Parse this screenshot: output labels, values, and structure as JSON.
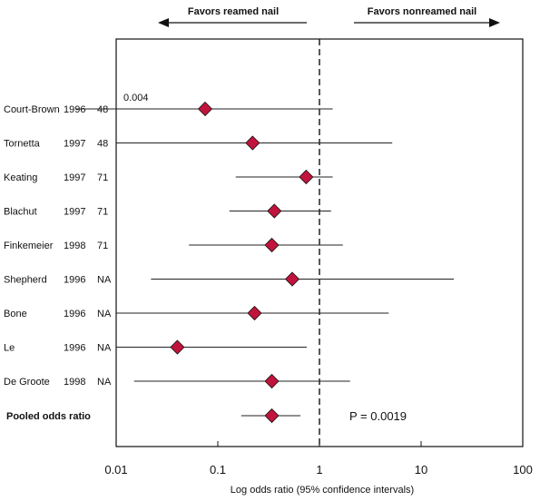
{
  "chart_data": {
    "type": "forest",
    "xscale": "log",
    "xlim": [
      0.01,
      100
    ],
    "xticks": [
      "0.01",
      "0.1",
      "1",
      "10",
      "100"
    ],
    "xlabel": "Log odds ratio (95% confidence intervals)",
    "reference_line": 1,
    "header_left": "Favors reamed nail",
    "header_right": "Favors nonreamed nail",
    "annotation": "0.004",
    "p_value_label": "P = 0.0019",
    "studies": [
      {
        "name": "Court-Brown",
        "year": "1996",
        "n": "48",
        "or": 0.075,
        "lo": 0.004,
        "hi": 1.35
      },
      {
        "name": "Tornetta",
        "year": "1997",
        "n": "48",
        "or": 0.22,
        "lo": 0.01,
        "hi": 5.2
      },
      {
        "name": "Keating",
        "year": "1997",
        "n": "71",
        "or": 0.74,
        "lo": 0.15,
        "hi": 1.35
      },
      {
        "name": "Blachut",
        "year": "1997",
        "n": "71",
        "or": 0.36,
        "lo": 0.13,
        "hi": 1.3
      },
      {
        "name": "Finkemeier",
        "year": "1998",
        "n": "71",
        "or": 0.34,
        "lo": 0.052,
        "hi": 1.7
      },
      {
        "name": "Shepherd",
        "year": "1996",
        "n": "NA",
        "or": 0.54,
        "lo": 0.022,
        "hi": 21
      },
      {
        "name": "Bone",
        "year": "1996",
        "n": "NA",
        "or": 0.23,
        "lo": 0.01,
        "hi": 4.8
      },
      {
        "name": "Le",
        "year": "1996",
        "n": "NA",
        "or": 0.04,
        "lo": 0.01,
        "hi": 0.75
      },
      {
        "name": "De Groote",
        "year": "1998",
        "n": "NA",
        "or": 0.34,
        "lo": 0.015,
        "hi": 2.0
      }
    ],
    "pooled": {
      "name": "Pooled odds ratio",
      "or": 0.34,
      "lo": 0.17,
      "hi": 0.65
    },
    "colors": {
      "marker": "#c0143c",
      "line": "#222222"
    }
  }
}
